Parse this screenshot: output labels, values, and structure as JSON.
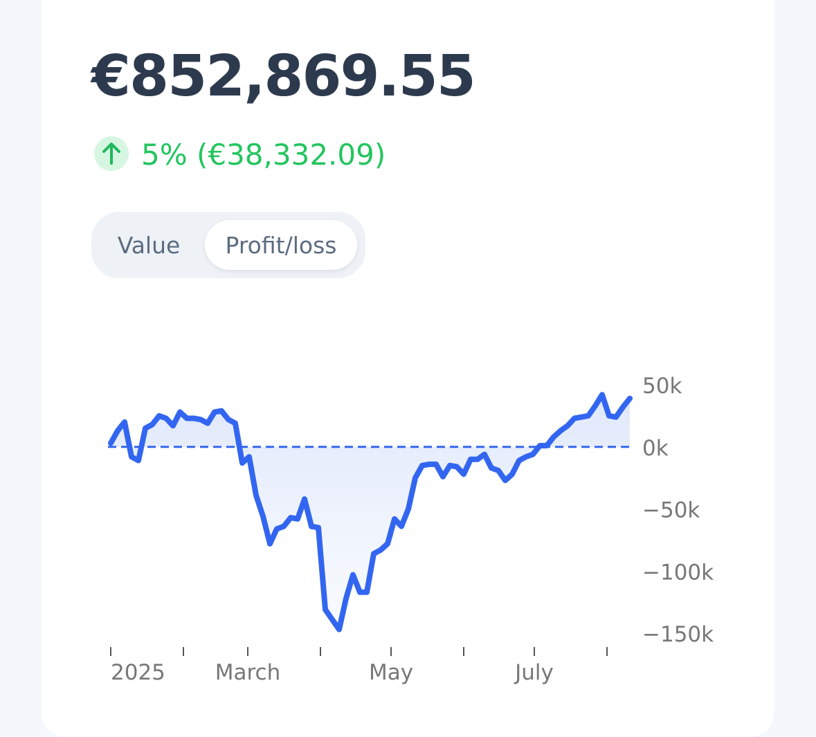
{
  "header": {
    "amount": "€852,869.55",
    "change": "5% (€38,332.09)"
  },
  "toggle": {
    "options": [
      "Value",
      "Profit/loss"
    ],
    "selected": 1
  },
  "chart_data": {
    "type": "line",
    "categories": [
      null,
      null,
      null,
      null,
      null,
      null,
      null,
      null,
      null,
      null,
      null,
      null,
      null,
      null,
      null,
      null,
      null,
      null,
      null,
      null,
      null,
      null,
      null,
      null,
      null,
      null,
      null,
      null,
      null,
      null,
      null,
      null,
      null,
      null,
      null,
      null,
      null,
      null,
      null,
      null,
      null,
      null,
      null,
      null,
      null,
      null,
      null,
      null,
      null,
      null,
      null,
      null,
      null,
      null,
      null,
      null,
      null,
      null,
      null,
      null,
      null,
      null,
      null,
      null,
      null,
      null,
      null,
      null,
      null,
      null,
      null,
      null,
      null,
      null,
      null,
      null
    ],
    "series": [
      {
        "name": "Profit/loss",
        "color": "#3366f0",
        "values": [
          3000,
          13000,
          20000,
          -8000,
          -11000,
          15000,
          18000,
          25000,
          23000,
          17000,
          28000,
          23000,
          23000,
          22000,
          19000,
          28000,
          29000,
          22000,
          19000,
          -13000,
          -8000,
          -39000,
          -56000,
          -78000,
          -66000,
          -64000,
          -57000,
          -58000,
          -42000,
          -64000,
          -65000,
          -131000,
          -139000,
          -147000,
          -122000,
          -103000,
          -117000,
          -117000,
          -86000,
          -83000,
          -78000,
          -58000,
          -64000,
          -50000,
          -25000,
          -15000,
          -14000,
          -14000,
          -24000,
          -15000,
          -16000,
          -22000,
          -10000,
          -10000,
          -6000,
          -17000,
          -19000,
          -27000,
          -22000,
          -11000,
          -8000,
          -6000,
          1000,
          1000,
          8000,
          13000,
          17000,
          23000,
          24000,
          25000,
          33000,
          42000,
          25000,
          24000,
          32000,
          39000
        ]
      }
    ],
    "xticks": [
      {
        "value": 0,
        "label": "2025"
      },
      10.5,
      {
        "value": 19.8,
        "label": "March"
      },
      30.3,
      {
        "value": 40.5,
        "label": "May"
      },
      51,
      {
        "value": 61.2,
        "label": "July"
      },
      71.7
    ],
    "ylim": [
      -150000,
      50000
    ],
    "yticks": [
      {
        "value": 50000,
        "label": "50k"
      },
      {
        "value": 0,
        "label": "0k"
      },
      {
        "value": -50000,
        "label": "−50k"
      },
      {
        "value": -100000,
        "label": "−100k"
      },
      {
        "value": -150000,
        "label": "−150k"
      }
    ],
    "baseline": 0,
    "area": true
  }
}
